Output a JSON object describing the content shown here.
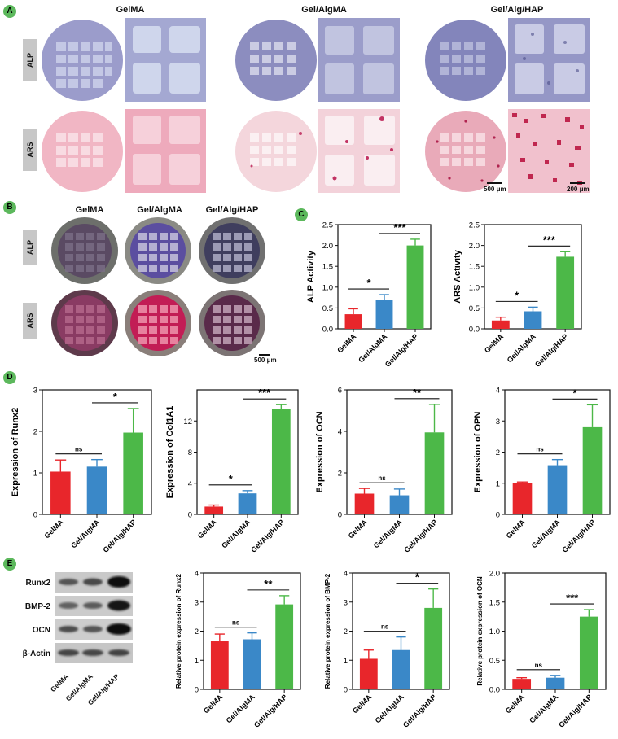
{
  "panels": {
    "A": {
      "badge": "A",
      "columns": [
        "GelMA",
        "Gel/AlgMA",
        "Gel/Alg/HAP"
      ],
      "rows": [
        "ALP",
        "ARS"
      ],
      "scale_low": "500 μm",
      "scale_high": "200 μm"
    },
    "B": {
      "badge": "B",
      "columns": [
        "GelMA",
        "Gel/AlgMA",
        "Gel/Alg/HAP"
      ],
      "rows": [
        "ALP",
        "ARS"
      ],
      "scale": "500 μm"
    },
    "C": {
      "badge": "C"
    },
    "D": {
      "badge": "D"
    },
    "E": {
      "badge": "E",
      "blot_rows": [
        "Runx2",
        "BMP-2",
        "OCN",
        "β-Actin"
      ],
      "lanes": [
        "GelMA",
        "Gel/AlgMA",
        "Gel/Alg/HAP"
      ]
    }
  },
  "colors": {
    "GelMA": "#e8262b",
    "Gel/AlgMA": "#3a88c8",
    "Gel/Alg/HAP": "#4cb848",
    "badge": "#5cb85c"
  },
  "chart_data": [
    {
      "id": "c1",
      "type": "bar",
      "categories": [
        "GelMA",
        "Gel/AlgMA",
        "Gel/Alg/HAP"
      ],
      "values": [
        0.35,
        0.7,
        2.0
      ],
      "errors": [
        0.13,
        0.12,
        0.15
      ],
      "ylabel": "ALP Activity",
      "ylim": [
        0,
        2.5
      ],
      "yticks": [
        "0.0",
        "0.5",
        "1.0",
        "1.5",
        "2.0",
        "2.5"
      ],
      "sig": [
        {
          "from": 0,
          "to": 1,
          "label": "*"
        },
        {
          "from": 1,
          "to": 2,
          "label": "***"
        }
      ]
    },
    {
      "id": "c2",
      "type": "bar",
      "categories": [
        "GelMA",
        "Gel/AlgMA",
        "Gel/Alg/HAP"
      ],
      "values": [
        0.2,
        0.42,
        1.73
      ],
      "errors": [
        0.08,
        0.1,
        0.12
      ],
      "ylabel": "ARS Activity",
      "ylim": [
        0,
        2.5
      ],
      "yticks": [
        "0.0",
        "0.5",
        "1.0",
        "1.5",
        "2.0",
        "2.5"
      ],
      "sig": [
        {
          "from": 0,
          "to": 1,
          "label": "*"
        },
        {
          "from": 1,
          "to": 2,
          "label": "***"
        }
      ]
    },
    {
      "id": "d1",
      "type": "bar",
      "categories": [
        "GelMA",
        "Gel/AlgMA",
        "Gel/Alg/HAP"
      ],
      "values": [
        1.03,
        1.15,
        1.97
      ],
      "errors": [
        0.28,
        0.17,
        0.58
      ],
      "ylabel": "Expression of Runx2",
      "ylim": [
        0,
        3
      ],
      "yticks": [
        "0",
        "1",
        "2",
        "3"
      ],
      "sig": [
        {
          "from": 0,
          "to": 1,
          "label": "ns"
        },
        {
          "from": 1,
          "to": 2,
          "label": "*"
        }
      ]
    },
    {
      "id": "d2",
      "type": "bar",
      "categories": [
        "GelMA",
        "Gel/AlgMA",
        "Gel/Alg/HAP"
      ],
      "values": [
        1.0,
        2.7,
        13.5
      ],
      "errors": [
        0.2,
        0.35,
        0.6
      ],
      "ylabel": "Expression of Col1A1",
      "ylim": [
        0,
        16
      ],
      "yticks": [
        "0",
        "4",
        "8",
        "12"
      ],
      "sig": [
        {
          "from": 0,
          "to": 1,
          "label": "*"
        },
        {
          "from": 1,
          "to": 2,
          "label": "***"
        }
      ]
    },
    {
      "id": "d3",
      "type": "bar",
      "categories": [
        "GelMA",
        "Gel/AlgMA",
        "Gel/Alg/HAP"
      ],
      "values": [
        1.0,
        0.92,
        3.95
      ],
      "errors": [
        0.25,
        0.3,
        1.35
      ],
      "ylabel": "Expression of OCN",
      "ylim": [
        0,
        6
      ],
      "yticks": [
        "0",
        "2",
        "4",
        "6"
      ],
      "sig": [
        {
          "from": 0,
          "to": 1,
          "label": "ns"
        },
        {
          "from": 1,
          "to": 2,
          "label": "**"
        }
      ]
    },
    {
      "id": "d4",
      "type": "bar",
      "categories": [
        "GelMA",
        "Gel/AlgMA",
        "Gel/Alg/HAP"
      ],
      "values": [
        1.0,
        1.58,
        2.8
      ],
      "errors": [
        0.04,
        0.18,
        0.72
      ],
      "ylabel": "Expression of OPN",
      "ylim": [
        0,
        4
      ],
      "yticks": [
        "0",
        "1",
        "2",
        "3",
        "4"
      ],
      "sig": [
        {
          "from": 0,
          "to": 1,
          "label": "ns"
        },
        {
          "from": 1,
          "to": 2,
          "label": "*"
        }
      ]
    },
    {
      "id": "e1",
      "type": "bar",
      "categories": [
        "GelMA",
        "Gel/AlgMA",
        "Gel/Alg/HAP"
      ],
      "values": [
        1.65,
        1.72,
        2.92
      ],
      "errors": [
        0.25,
        0.22,
        0.3
      ],
      "ylabel": "Relative protein expression of Runx2",
      "ylim": [
        0,
        4
      ],
      "yticks": [
        "0",
        "1",
        "2",
        "3",
        "4"
      ],
      "sig": [
        {
          "from": 0,
          "to": 1,
          "label": "ns"
        },
        {
          "from": 1,
          "to": 2,
          "label": "**"
        }
      ]
    },
    {
      "id": "e2",
      "type": "bar",
      "categories": [
        "GelMA",
        "Gel/AlgMA",
        "Gel/Alg/HAP"
      ],
      "values": [
        1.05,
        1.35,
        2.8
      ],
      "errors": [
        0.3,
        0.45,
        0.65
      ],
      "ylabel": "Relative protein expression of BMP-2",
      "ylim": [
        0,
        4
      ],
      "yticks": [
        "0",
        "1",
        "2",
        "3",
        "4"
      ],
      "sig": [
        {
          "from": 0,
          "to": 1,
          "label": "ns"
        },
        {
          "from": 1,
          "to": 2,
          "label": "*"
        }
      ]
    },
    {
      "id": "e3",
      "type": "bar",
      "categories": [
        "GelMA",
        "Gel/AlgMA",
        "Gel/Alg/HAP"
      ],
      "values": [
        0.18,
        0.2,
        1.25
      ],
      "errors": [
        0.02,
        0.04,
        0.12
      ],
      "ylabel": "Relative protein expression of OCN",
      "ylim": [
        0,
        2.0
      ],
      "yticks": [
        "0.0",
        "0.5",
        "1.0",
        "1.5",
        "2.0"
      ],
      "sig": [
        {
          "from": 0,
          "to": 1,
          "label": "ns"
        },
        {
          "from": 1,
          "to": 2,
          "label": "***"
        }
      ]
    }
  ]
}
